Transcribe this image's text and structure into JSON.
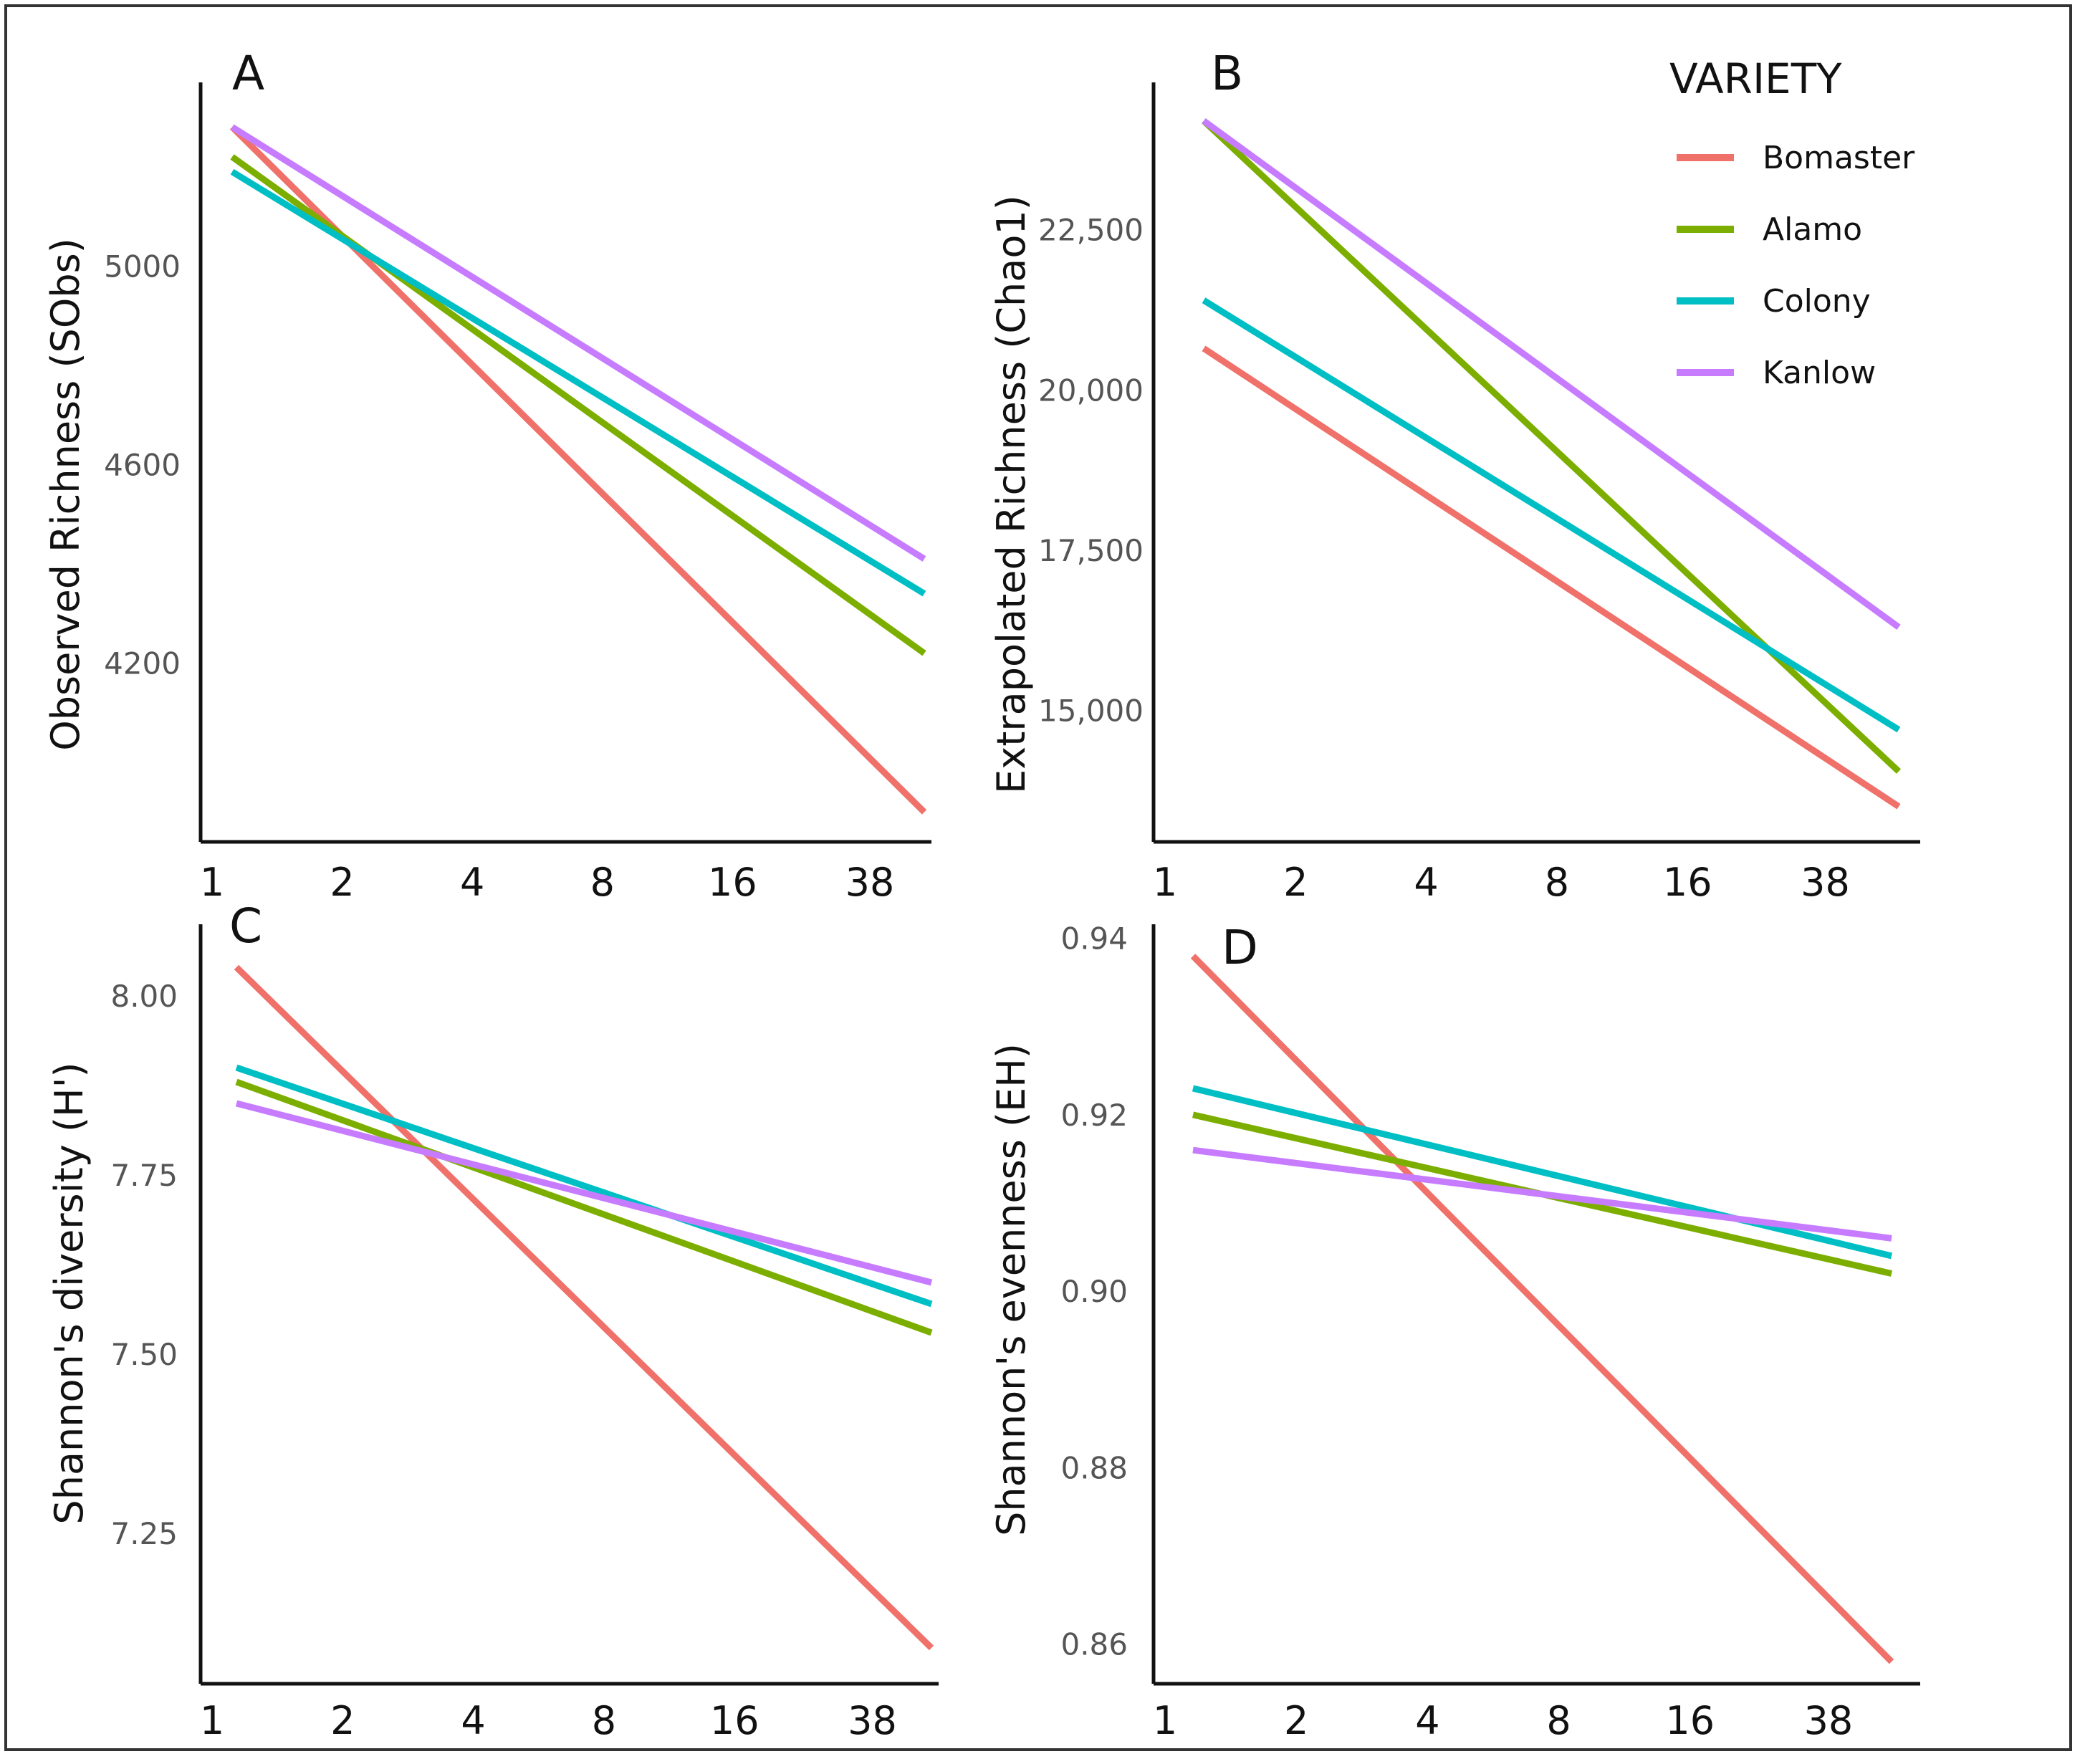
{
  "chart_data": [
    {
      "type": "line",
      "panel": "A",
      "ylabel": "Observed Richness (SObs)",
      "xlabel": "",
      "x_ticks": [
        "1",
        "2",
        "4",
        "8",
        "16",
        "38"
      ],
      "y_ticks": [
        "5000",
        "4600",
        "4200"
      ],
      "y_tick_values": [
        5000,
        4600,
        4200
      ],
      "ylim": [
        3840,
        5370
      ],
      "series": [
        {
          "name": "Bomaster",
          "start": 5280,
          "end": 3900
        },
        {
          "name": "Alamo",
          "start": 5220,
          "end": 4220
        },
        {
          "name": "Colony",
          "start": 5190,
          "end": 4340
        },
        {
          "name": "Kanlow",
          "start": 5280,
          "end": 4410
        }
      ]
    },
    {
      "type": "line",
      "panel": "B",
      "ylabel": "Extrapolated Richness (Chao1)",
      "xlabel": "",
      "x_ticks": [
        "1",
        "2",
        "4",
        "8",
        "16",
        "38"
      ],
      "y_ticks": [
        "22,500",
        "20,000",
        "17,500",
        "15,000"
      ],
      "y_tick_values": [
        22500,
        20000,
        17500,
        15000
      ],
      "ylim": [
        12950,
        24800
      ],
      "series": [
        {
          "name": "Bomaster",
          "start": 20650,
          "end": 13500
        },
        {
          "name": "Alamo",
          "start": 24200,
          "end": 14050
        },
        {
          "name": "Colony",
          "start": 21400,
          "end": 14700
        },
        {
          "name": "Kanlow",
          "start": 24200,
          "end": 16300
        }
      ]
    },
    {
      "type": "line",
      "panel": "C",
      "ylabel": "Shannon's diversity (H')",
      "xlabel": "",
      "x_ticks": [
        "1",
        "2",
        "4",
        "8",
        "16",
        "38"
      ],
      "y_ticks": [
        "8.00",
        "7.75",
        "7.50",
        "7.25"
      ],
      "y_tick_values": [
        8.0,
        7.75,
        7.5,
        7.25
      ],
      "ylim": [
        7.04,
        8.1
      ],
      "series": [
        {
          "name": "Bomaster",
          "start": 8.04,
          "end": 7.09
        },
        {
          "name": "Alamo",
          "start": 7.88,
          "end": 7.53
        },
        {
          "name": "Colony",
          "start": 7.9,
          "end": 7.57
        },
        {
          "name": "Kanlow",
          "start": 7.85,
          "end": 7.6
        }
      ]
    },
    {
      "type": "line",
      "panel": "D",
      "ylabel": "Shannon's evenness (EH)",
      "xlabel": "",
      "x_ticks": [
        "1",
        "2",
        "4",
        "8",
        "16",
        "38"
      ],
      "y_ticks": [
        "0.94",
        "0.92",
        "0.90",
        "0.88",
        "0.86"
      ],
      "y_tick_values": [
        0.94,
        0.92,
        0.9,
        0.88,
        0.86
      ],
      "ylim": [
        0.8555,
        0.9416
      ],
      "series": [
        {
          "name": "Bomaster",
          "start": 0.938,
          "end": 0.858
        },
        {
          "name": "Alamo",
          "start": 0.92,
          "end": 0.902
        },
        {
          "name": "Colony",
          "start": 0.923,
          "end": 0.904
        },
        {
          "name": "Kanlow",
          "start": 0.916,
          "end": 0.906
        }
      ]
    }
  ],
  "legend": {
    "title": "VARIETY",
    "items": [
      "Bomaster",
      "Alamo",
      "Colony",
      "Kanlow"
    ]
  },
  "colors": {
    "Bomaster": "#F0706A",
    "Alamo": "#7CAE00",
    "Colony": "#00BFC4",
    "Kanlow": "#C77CFF",
    "axis": "#111111",
    "frame": "#333333"
  }
}
